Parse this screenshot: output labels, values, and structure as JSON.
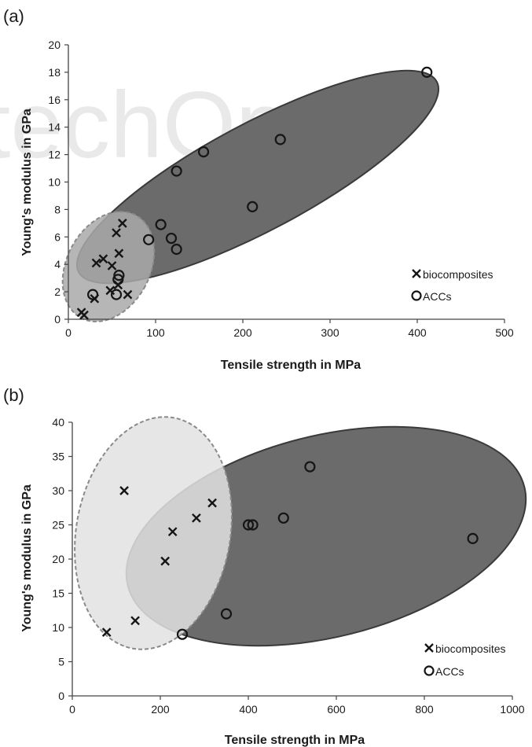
{
  "watermark": "techOpen",
  "chart_data": [
    {
      "panel": "(a)",
      "type": "scatter",
      "xlabel": "Tensile strength in MPa",
      "ylabel": "Young's modulus in GPa",
      "xlim": [
        0,
        500
      ],
      "ylim": [
        0,
        20
      ],
      "xticks": [
        "0",
        "100",
        "200",
        "300",
        "400",
        "500"
      ],
      "yticks": [
        "0",
        "2",
        "4",
        "6",
        "8",
        "10",
        "12",
        "14",
        "16",
        "18",
        "20"
      ],
      "legend_position": "bottom-right",
      "series": [
        {
          "name": "biocomposites",
          "marker": "x",
          "points": [
            [
              15,
              0.5
            ],
            [
              18,
              0.3
            ],
            [
              30,
              1.5
            ],
            [
              32,
              4.1
            ],
            [
              40,
              4.4
            ],
            [
              48,
              2.1
            ],
            [
              50,
              3.9
            ],
            [
              55,
              6.3
            ],
            [
              57,
              2.5
            ],
            [
              58,
              4.8
            ],
            [
              62,
              7.0
            ],
            [
              68,
              1.8
            ]
          ]
        },
        {
          "name": "ACCs",
          "marker": "o",
          "points": [
            [
              28,
              1.8
            ],
            [
              55,
              1.8
            ],
            [
              57,
              2.9
            ],
            [
              58,
              3.2
            ],
            [
              92,
              5.8
            ],
            [
              106,
              6.9
            ],
            [
              118,
              5.9
            ],
            [
              124,
              5.1
            ],
            [
              124,
              10.8
            ],
            [
              155,
              12.2
            ],
            [
              211,
              8.2
            ],
            [
              243,
              13.1
            ],
            [
              411,
              18.0
            ]
          ]
        }
      ],
      "regions": [
        {
          "name": "ACCs",
          "style": "solid",
          "color": "#6b6b6b"
        },
        {
          "name": "biocomposites",
          "style": "dashed",
          "color": "#a9a9a9"
        }
      ]
    },
    {
      "panel": "(b)",
      "type": "scatter",
      "xlabel": "Tensile strength in MPa",
      "ylabel": "Young's modulus in GPa",
      "xlim": [
        0,
        1000
      ],
      "ylim": [
        0,
        40
      ],
      "xticks": [
        "0",
        "200",
        "400",
        "600",
        "800",
        "1000"
      ],
      "yticks": [
        "0",
        "5",
        "10",
        "15",
        "20",
        "25",
        "30",
        "35",
        "40"
      ],
      "legend_position": "bottom-right",
      "series": [
        {
          "name": "biocomposites",
          "marker": "x",
          "points": [
            [
              78,
              9.3
            ],
            [
              118,
              30.0
            ],
            [
              143,
              11.0
            ],
            [
              211,
              19.7
            ],
            [
              228,
              24.0
            ],
            [
              282,
              26.0
            ],
            [
              318,
              28.2
            ]
          ]
        },
        {
          "name": "ACCs",
          "marker": "o",
          "points": [
            [
              250,
              9.0
            ],
            [
              350,
              12.0
            ],
            [
              400,
              25.0
            ],
            [
              410,
              25.0
            ],
            [
              480,
              26.0
            ],
            [
              540,
              33.5
            ],
            [
              910,
              23.0
            ]
          ]
        }
      ],
      "regions": [
        {
          "name": "ACCs",
          "style": "solid",
          "color": "#6b6b6b"
        },
        {
          "name": "biocomposites",
          "style": "dashed",
          "color": "#e2e2e2"
        }
      ]
    }
  ]
}
